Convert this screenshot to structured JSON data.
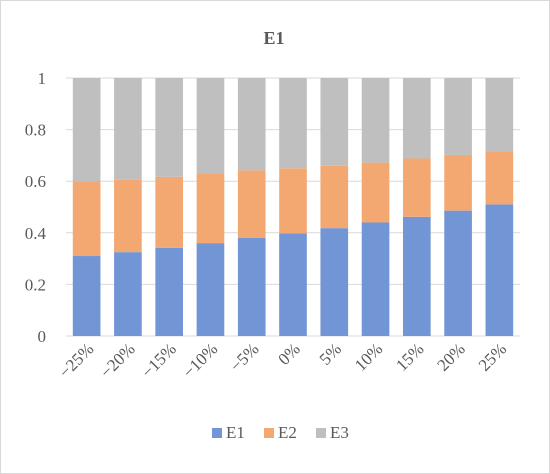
{
  "chart_data": {
    "type": "bar",
    "stacked": true,
    "title": "E1",
    "categories": [
      "−25%",
      "−20%",
      "−15%",
      "−10%",
      "−5%",
      "0%",
      "5%",
      "10%",
      "15%",
      "20%",
      "25%"
    ],
    "series": [
      {
        "name": "E1",
        "color": "#7296d5",
        "values": [
          0.31,
          0.325,
          0.342,
          0.36,
          0.38,
          0.398,
          0.418,
          0.44,
          0.462,
          0.486,
          0.51
        ]
      },
      {
        "name": "E2",
        "color": "#f4a871",
        "values": [
          0.29,
          0.28,
          0.275,
          0.27,
          0.262,
          0.252,
          0.242,
          0.232,
          0.226,
          0.216,
          0.205
        ]
      },
      {
        "name": "E3",
        "color": "#bfbfbf",
        "values": [
          0.4,
          0.395,
          0.383,
          0.37,
          0.358,
          0.35,
          0.34,
          0.328,
          0.312,
          0.298,
          0.285
        ]
      }
    ],
    "ylim": [
      0,
      1
    ],
    "yticks": [
      "0",
      "0.2",
      "0.4",
      "0.6",
      "0.8",
      "1"
    ],
    "grid": true,
    "legend": "bottom",
    "xlabel": "",
    "ylabel": ""
  }
}
